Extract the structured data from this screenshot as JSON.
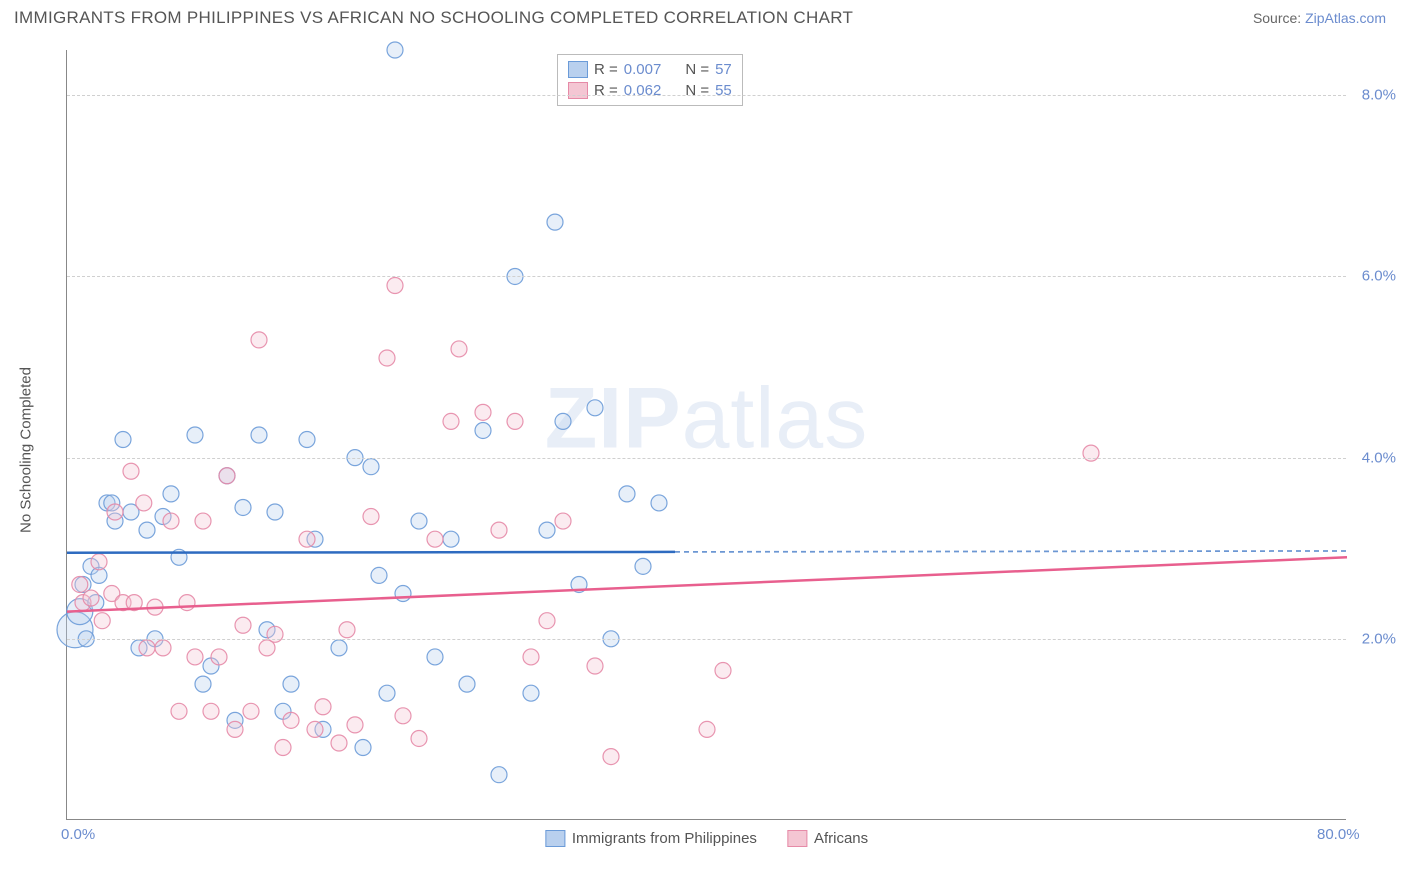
{
  "title": "IMMIGRANTS FROM PHILIPPINES VS AFRICAN NO SCHOOLING COMPLETED CORRELATION CHART",
  "source_label": "Source: ",
  "source_name": "ZipAtlas.com",
  "y_axis_title": "No Schooling Completed",
  "watermark_bold": "ZIP",
  "watermark_light": "atlas",
  "chart": {
    "type": "scatter",
    "xlim": [
      0,
      80
    ],
    "ylim": [
      0,
      8.5
    ],
    "x_ticks": [
      0.0,
      80.0
    ],
    "x_tick_labels": [
      "0.0%",
      "80.0%"
    ],
    "y_ticks": [
      2.0,
      4.0,
      6.0,
      8.0
    ],
    "y_tick_labels": [
      "2.0%",
      "4.0%",
      "6.0%",
      "8.0%"
    ],
    "grid_color": "#d0d0d0",
    "background_color": "#ffffff",
    "marker_radius": 8,
    "marker_fill_opacity": 0.35,
    "marker_stroke_opacity": 0.9,
    "marker_stroke_width": 1.2,
    "trend_line_width": 2.5,
    "trend_dash": "5,4",
    "series": [
      {
        "id": "ph",
        "label": "Immigrants from Philippines",
        "color_fill": "#b9d0ee",
        "color_stroke": "#6b9bd8",
        "trend_color": "#2e6bc0",
        "r_value": "0.007",
        "n_value": "57",
        "points": [
          [
            0.5,
            2.1,
            18
          ],
          [
            0.8,
            2.3,
            13
          ],
          [
            1.0,
            2.6
          ],
          [
            1.2,
            2.0
          ],
          [
            1.5,
            2.8
          ],
          [
            1.8,
            2.4
          ],
          [
            2.0,
            2.7
          ],
          [
            2.5,
            3.5
          ],
          [
            2.8,
            3.5
          ],
          [
            3.0,
            3.3
          ],
          [
            3.5,
            4.2
          ],
          [
            4.0,
            3.4
          ],
          [
            4.5,
            1.9
          ],
          [
            5.0,
            3.2
          ],
          [
            5.5,
            2.0
          ],
          [
            6.0,
            3.35
          ],
          [
            6.5,
            3.6
          ],
          [
            7.0,
            2.9
          ],
          [
            8.0,
            4.25
          ],
          [
            8.5,
            1.5
          ],
          [
            9.0,
            1.7
          ],
          [
            10.0,
            3.8
          ],
          [
            10.5,
            1.1
          ],
          [
            11.0,
            3.45
          ],
          [
            12.0,
            4.25
          ],
          [
            12.5,
            2.1
          ],
          [
            13.0,
            3.4
          ],
          [
            13.5,
            1.2
          ],
          [
            14.0,
            1.5
          ],
          [
            15.0,
            4.2
          ],
          [
            15.5,
            3.1
          ],
          [
            16.0,
            1.0
          ],
          [
            17.0,
            1.9
          ],
          [
            18.0,
            4.0
          ],
          [
            18.5,
            0.8
          ],
          [
            19.0,
            3.9
          ],
          [
            19.5,
            2.7
          ],
          [
            20.0,
            1.4
          ],
          [
            20.5,
            8.5
          ],
          [
            21.0,
            2.5
          ],
          [
            22.0,
            3.3
          ],
          [
            23.0,
            1.8
          ],
          [
            24.0,
            3.1
          ],
          [
            25.0,
            1.5
          ],
          [
            26.0,
            4.3
          ],
          [
            27.0,
            0.5
          ],
          [
            28.0,
            6.0
          ],
          [
            29.0,
            1.4
          ],
          [
            30.0,
            3.2
          ],
          [
            30.5,
            6.6
          ],
          [
            31.0,
            4.4
          ],
          [
            32.0,
            2.6
          ],
          [
            33.0,
            4.55
          ],
          [
            34.0,
            2.0
          ],
          [
            35.0,
            3.6
          ],
          [
            36.0,
            2.8
          ],
          [
            37.0,
            3.5
          ]
        ],
        "trend": {
          "y_at_x0": 2.95,
          "y_at_xmax": 2.97,
          "solid_until_x": 38
        }
      },
      {
        "id": "af",
        "label": "Africans",
        "color_fill": "#f4c6d3",
        "color_stroke": "#e68aa7",
        "trend_color": "#e85f8e",
        "r_value": "0.062",
        "n_value": "55",
        "points": [
          [
            0.8,
            2.6
          ],
          [
            1.0,
            2.4
          ],
          [
            1.5,
            2.45
          ],
          [
            2.0,
            2.85
          ],
          [
            2.2,
            2.2
          ],
          [
            2.8,
            2.5
          ],
          [
            3.0,
            3.4
          ],
          [
            3.5,
            2.4
          ],
          [
            4.0,
            3.85
          ],
          [
            4.2,
            2.4
          ],
          [
            4.8,
            3.5
          ],
          [
            5.0,
            1.9
          ],
          [
            5.5,
            2.35
          ],
          [
            6.0,
            1.9
          ],
          [
            6.5,
            3.3
          ],
          [
            7.0,
            1.2
          ],
          [
            7.5,
            2.4
          ],
          [
            8.0,
            1.8
          ],
          [
            8.5,
            3.3
          ],
          [
            9.0,
            1.2
          ],
          [
            9.5,
            1.8
          ],
          [
            10.0,
            3.8
          ],
          [
            10.5,
            1.0
          ],
          [
            11.0,
            2.15
          ],
          [
            11.5,
            1.2
          ],
          [
            12.0,
            5.3
          ],
          [
            12.5,
            1.9
          ],
          [
            13.0,
            2.05
          ],
          [
            13.5,
            0.8
          ],
          [
            14.0,
            1.1
          ],
          [
            15.0,
            3.1
          ],
          [
            15.5,
            1.0
          ],
          [
            16.0,
            1.25
          ],
          [
            17.0,
            0.85
          ],
          [
            17.5,
            2.1
          ],
          [
            18.0,
            1.05
          ],
          [
            19.0,
            3.35
          ],
          [
            20.0,
            5.1
          ],
          [
            20.5,
            5.9
          ],
          [
            21.0,
            1.15
          ],
          [
            22.0,
            0.9
          ],
          [
            23.0,
            3.1
          ],
          [
            24.0,
            4.4
          ],
          [
            24.5,
            5.2
          ],
          [
            26.0,
            4.5
          ],
          [
            27.0,
            3.2
          ],
          [
            28.0,
            4.4
          ],
          [
            29.0,
            1.8
          ],
          [
            30.0,
            2.2
          ],
          [
            31.0,
            3.3
          ],
          [
            33.0,
            1.7
          ],
          [
            34.0,
            0.7
          ],
          [
            40.0,
            1.0
          ],
          [
            41.0,
            1.65
          ],
          [
            64.0,
            4.05
          ]
        ],
        "trend": {
          "y_at_x0": 2.3,
          "y_at_xmax": 2.9,
          "solid_until_x": 80
        }
      }
    ]
  },
  "legend_top_labels": {
    "R": "R =",
    "N": "N ="
  },
  "colors": {
    "axis": "#888888",
    "text": "#555555",
    "tick_text": "#6b8cce"
  }
}
